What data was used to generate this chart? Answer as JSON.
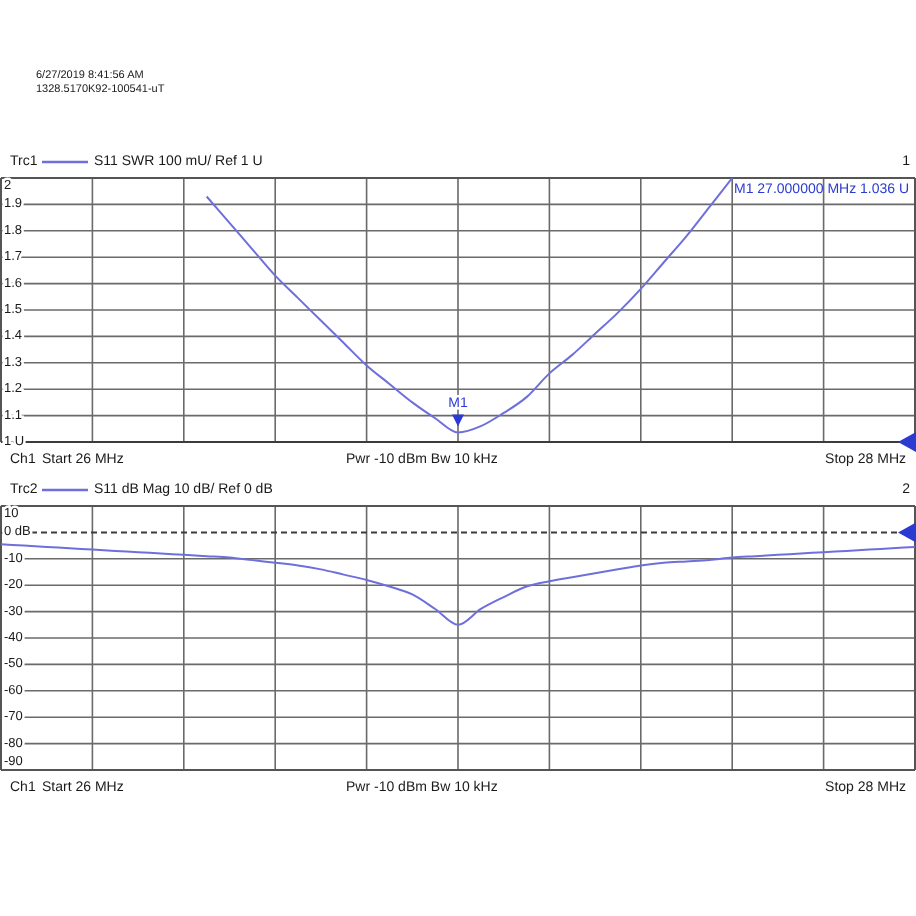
{
  "chart_data": [
    {
      "type": "line",
      "legend_title": "Trc1",
      "legend": "top left",
      "grid": true,
      "categories": [
        null,
        null,
        null,
        null,
        null,
        null,
        null,
        null,
        null,
        null,
        null,
        null,
        null,
        null,
        null,
        null,
        null,
        null,
        null,
        null,
        null,
        null,
        null,
        null,
        null,
        null,
        null,
        null,
        null,
        null,
        null,
        null,
        null,
        null,
        null,
        null,
        null,
        null,
        null,
        null,
        null
      ],
      "ylim": [
        1,
        2
      ],
      "yticks": [
        {
          "value": 1,
          "label": "1 U"
        },
        1.1,
        1.2,
        1.3,
        1.4,
        1.5,
        1.6,
        1.7,
        1.8,
        1.9,
        2
      ],
      "series": [
        {
          "name": "S11 SWR 100 mU/ Ref 1 U",
          "color": "#6f6fdc",
          "values": [
            null,
            null,
            null,
            null,
            null,
            null,
            null,
            null,
            null,
            1.93,
            1.83,
            1.73,
            1.63,
            1.545,
            1.46,
            1.375,
            1.29,
            1.22,
            1.15,
            1.09,
            1.036,
            1.06,
            1.11,
            1.17,
            1.26,
            1.33,
            1.41,
            1.49,
            1.58,
            1.68,
            1.78,
            1.89,
            2,
            null,
            null,
            null,
            null,
            null,
            null,
            null,
            null
          ]
        }
      ],
      "ref_lines": [
        {
          "axis": "y",
          "value": 1,
          "color": "#3c3c3c"
        }
      ],
      "annotations": [
        "6/27/2019 8:41:56 AM",
        "1328.5170K92-100541-uT",
        "1",
        "Ch1",
        "Start 26 MHz",
        "Pwr -10 dBm Bw 10 kHz",
        "Stop 28 MHz",
        "M1 27.000000 MHz 1.036 U",
        {
          "text": "M1",
          "y": 1.036
        }
      ]
    },
    {
      "type": "line",
      "legend_title": "Trc2",
      "legend": "top left",
      "grid": true,
      "categories": [
        null,
        null,
        null,
        null,
        null,
        null,
        null,
        null,
        null,
        null,
        null,
        null,
        null,
        null,
        null,
        null,
        null,
        null,
        null,
        null,
        null,
        null,
        null,
        null,
        null,
        null,
        null,
        null,
        null,
        null,
        null,
        null,
        null,
        null,
        null,
        null,
        null,
        null,
        null,
        null,
        null
      ],
      "ylim": [
        -90,
        10
      ],
      "yticks": [
        -90,
        -80,
        -70,
        -60,
        -50,
        -40,
        -30,
        -20,
        -10,
        {
          "value": 0,
          "label": "0 dB"
        },
        10
      ],
      "series": [
        {
          "name": "S11 dB Mag 10 dB/ Ref 0 dB",
          "color": "#6f6fdc",
          "values": [
            -4.5,
            -5,
            -5.5,
            -6,
            -6.5,
            -7,
            -7.5,
            -8,
            -8.5,
            -9,
            -9.5,
            -10.5,
            -11.5,
            -12.5,
            -14,
            -16,
            -18,
            -20.5,
            -23.5,
            -29,
            -35,
            -29,
            -24.5,
            -20.5,
            -18.5,
            -17,
            -15.5,
            -14,
            -12.5,
            -11.5,
            -11,
            -10.5,
            -9.5,
            -9,
            -8.5,
            -8,
            -7.5,
            -7,
            -6.5,
            -6,
            -5.5
          ]
        }
      ],
      "ref_lines": [
        {
          "axis": "y",
          "value": 0,
          "line_style": "dashed",
          "color": "#3c3c3c"
        }
      ],
      "annotations": [
        "2",
        "Ch1",
        "Start 26 MHz",
        "Pwr -10 dBm Bw 10 kHz",
        "Stop 28 MHz"
      ]
    }
  ]
}
